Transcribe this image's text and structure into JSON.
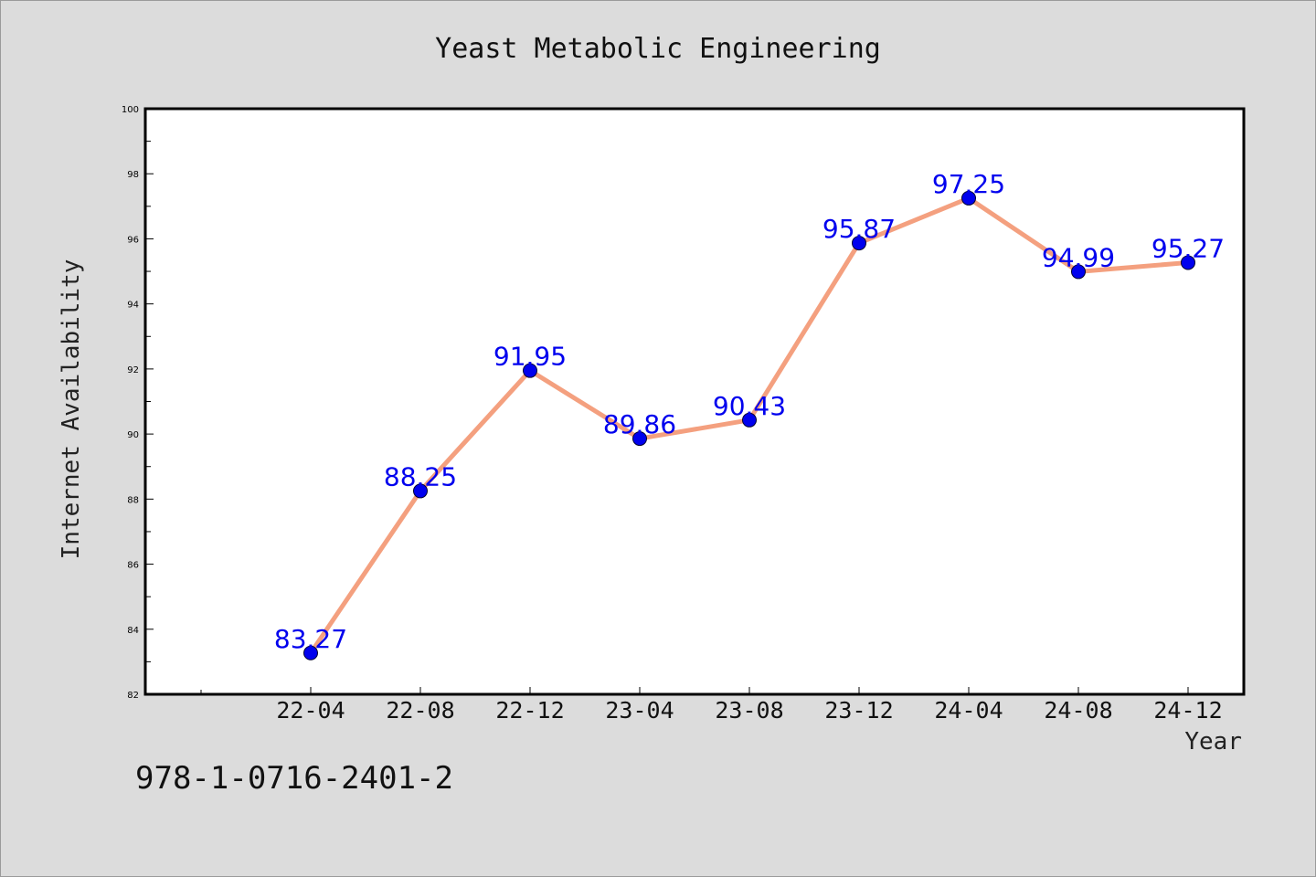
{
  "chart_data": {
    "type": "line",
    "title": "Yeast Metabolic Engineering",
    "xlabel": "Year",
    "ylabel": "Internet Availability",
    "categories": [
      "22-04",
      "22-08",
      "22-12",
      "23-04",
      "23-08",
      "23-12",
      "24-04",
      "24-08",
      "24-12"
    ],
    "values": [
      83.27,
      88.25,
      91.95,
      89.86,
      90.43,
      95.87,
      97.25,
      94.99,
      95.27
    ],
    "ylim": [
      82,
      100
    ],
    "yticks": [
      82,
      84,
      86,
      88,
      90,
      92,
      94,
      96,
      98,
      100
    ],
    "grid": false,
    "data_labels": true,
    "line_color": "#f4a07f",
    "marker_color": "#0000ee",
    "label_color": "#0000ee",
    "background": "#dcdcdc"
  },
  "footer": {
    "code": "978-1-0716-2401-2"
  }
}
